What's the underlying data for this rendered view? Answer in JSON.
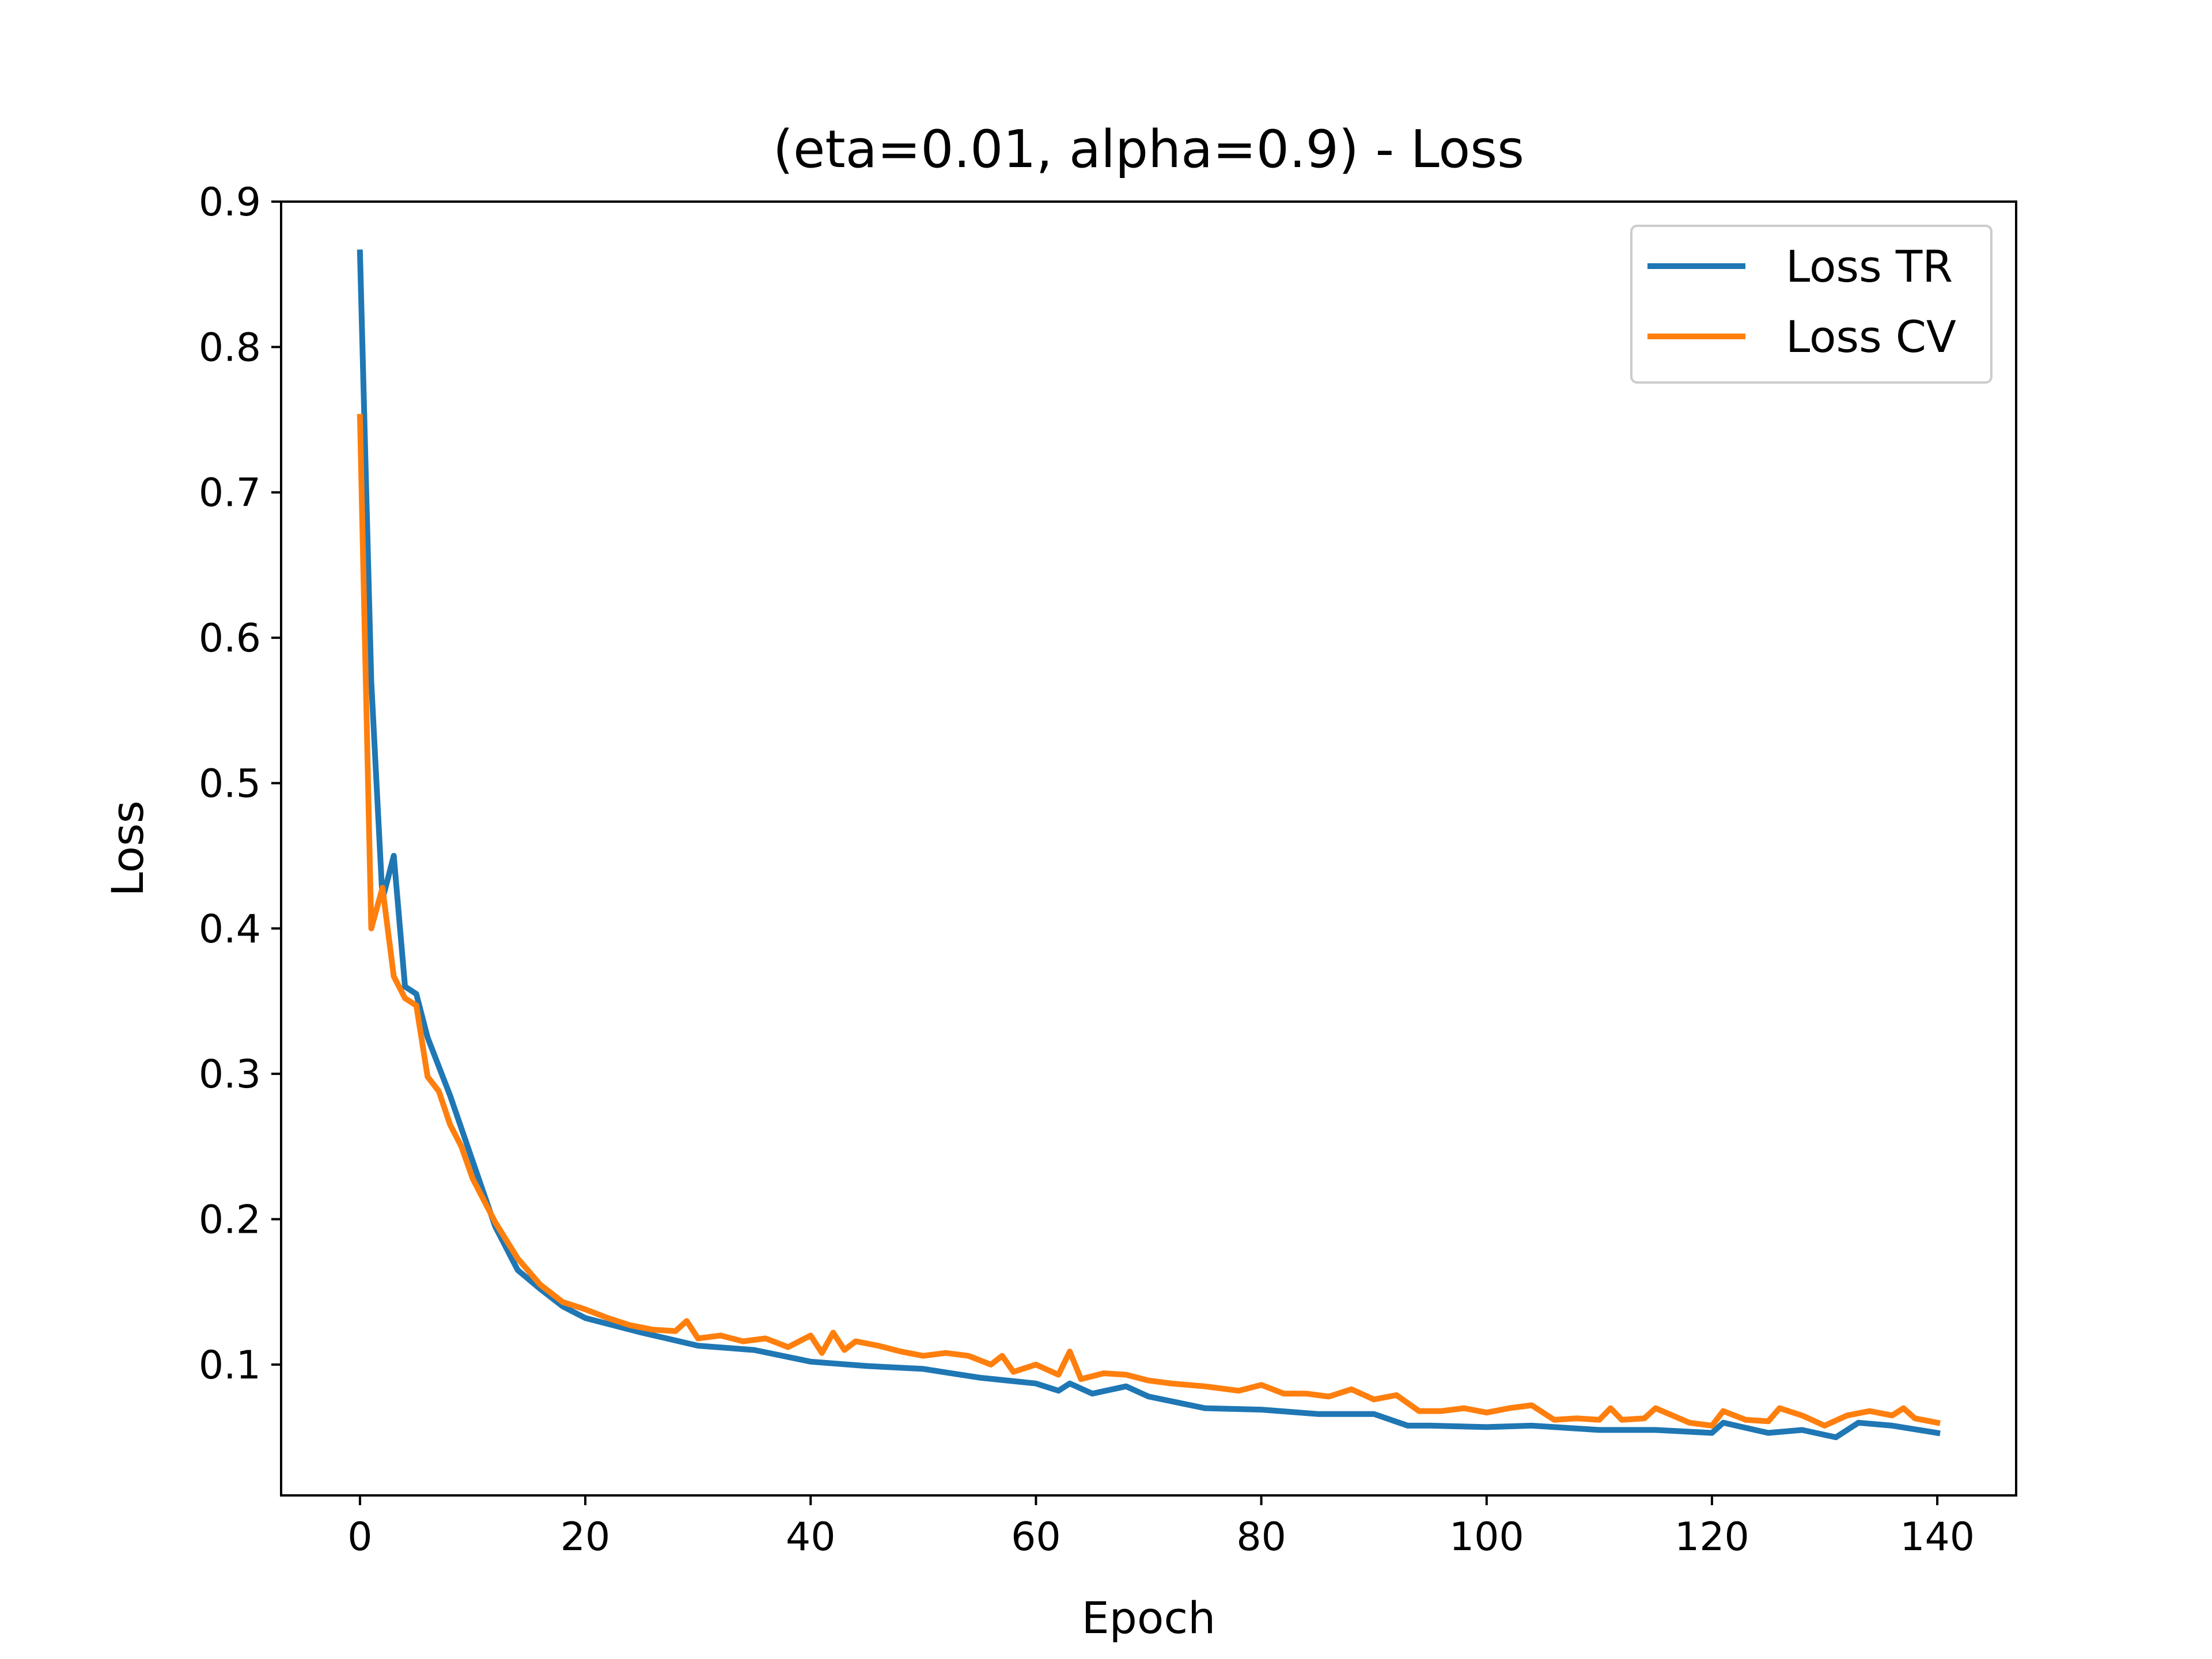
{
  "chart_data": {
    "type": "line",
    "title": "(eta=0.01, alpha=0.9) - Loss",
    "xlabel": "Epoch",
    "ylabel": "Loss",
    "xlim": [
      -7,
      147
    ],
    "ylim": [
      0.01,
      0.9
    ],
    "xticks": [
      0,
      20,
      40,
      60,
      80,
      100,
      120,
      140
    ],
    "yticks": [
      0.1,
      0.2,
      0.3,
      0.4,
      0.5,
      0.6,
      0.7,
      0.8,
      0.9
    ],
    "xtick_labels": [
      "0",
      "20",
      "40",
      "60",
      "80",
      "100",
      "120",
      "140"
    ],
    "ytick_labels": [
      "0.1",
      "0.2",
      "0.3",
      "0.4",
      "0.5",
      "0.6",
      "0.7",
      "0.8",
      "0.9"
    ],
    "grid": false,
    "legend_position": "upper right",
    "series": [
      {
        "name": "Loss TR",
        "color": "#1f77b4",
        "x": [
          0,
          1,
          2,
          3,
          4,
          5,
          6,
          8,
          10,
          12,
          14,
          16,
          18,
          20,
          25,
          30,
          35,
          40,
          45,
          50,
          55,
          60,
          62,
          63,
          65,
          68,
          70,
          75,
          80,
          85,
          90,
          93,
          95,
          100,
          104,
          110,
          115,
          120,
          121,
          125,
          128,
          131,
          133,
          136,
          140
        ],
        "y": [
          0.865,
          0.57,
          0.42,
          0.45,
          0.36,
          0.355,
          0.325,
          0.285,
          0.24,
          0.195,
          0.165,
          0.152,
          0.14,
          0.132,
          0.122,
          0.113,
          0.11,
          0.102,
          0.099,
          0.097,
          0.091,
          0.087,
          0.082,
          0.087,
          0.08,
          0.085,
          0.078,
          0.07,
          0.069,
          0.066,
          0.066,
          0.058,
          0.058,
          0.057,
          0.058,
          0.055,
          0.055,
          0.053,
          0.06,
          0.053,
          0.055,
          0.05,
          0.06,
          0.058,
          0.053
        ]
      },
      {
        "name": "Loss CV",
        "color": "#ff7f0e",
        "x": [
          0,
          1,
          2,
          3,
          4,
          5,
          6,
          7,
          8,
          9,
          10,
          12,
          14,
          16,
          18,
          20,
          22,
          24,
          26,
          28,
          29,
          30,
          32,
          34,
          36,
          38,
          40,
          41,
          42,
          43,
          44,
          46,
          48,
          50,
          52,
          54,
          56,
          57,
          58,
          60,
          62,
          63,
          64,
          66,
          68,
          70,
          72,
          75,
          78,
          80,
          82,
          84,
          86,
          88,
          90,
          92,
          94,
          96,
          98,
          100,
          102,
          104,
          106,
          108,
          110,
          111,
          112,
          114,
          115,
          118,
          120,
          121,
          123,
          125,
          126,
          128,
          130,
          132,
          134,
          136,
          137,
          138,
          140
        ],
        "y": [
          0.752,
          0.4,
          0.428,
          0.367,
          0.352,
          0.347,
          0.298,
          0.288,
          0.265,
          0.25,
          0.228,
          0.198,
          0.173,
          0.155,
          0.143,
          0.138,
          0.132,
          0.127,
          0.124,
          0.123,
          0.13,
          0.118,
          0.12,
          0.116,
          0.118,
          0.112,
          0.12,
          0.108,
          0.122,
          0.11,
          0.116,
          0.113,
          0.109,
          0.106,
          0.108,
          0.106,
          0.1,
          0.106,
          0.095,
          0.1,
          0.093,
          0.109,
          0.09,
          0.094,
          0.093,
          0.089,
          0.087,
          0.085,
          0.082,
          0.086,
          0.08,
          0.08,
          0.078,
          0.083,
          0.076,
          0.079,
          0.068,
          0.068,
          0.07,
          0.067,
          0.07,
          0.072,
          0.062,
          0.063,
          0.062,
          0.07,
          0.062,
          0.063,
          0.07,
          0.06,
          0.058,
          0.068,
          0.062,
          0.061,
          0.07,
          0.065,
          0.058,
          0.065,
          0.068,
          0.065,
          0.07,
          0.063,
          0.06
        ]
      }
    ]
  }
}
